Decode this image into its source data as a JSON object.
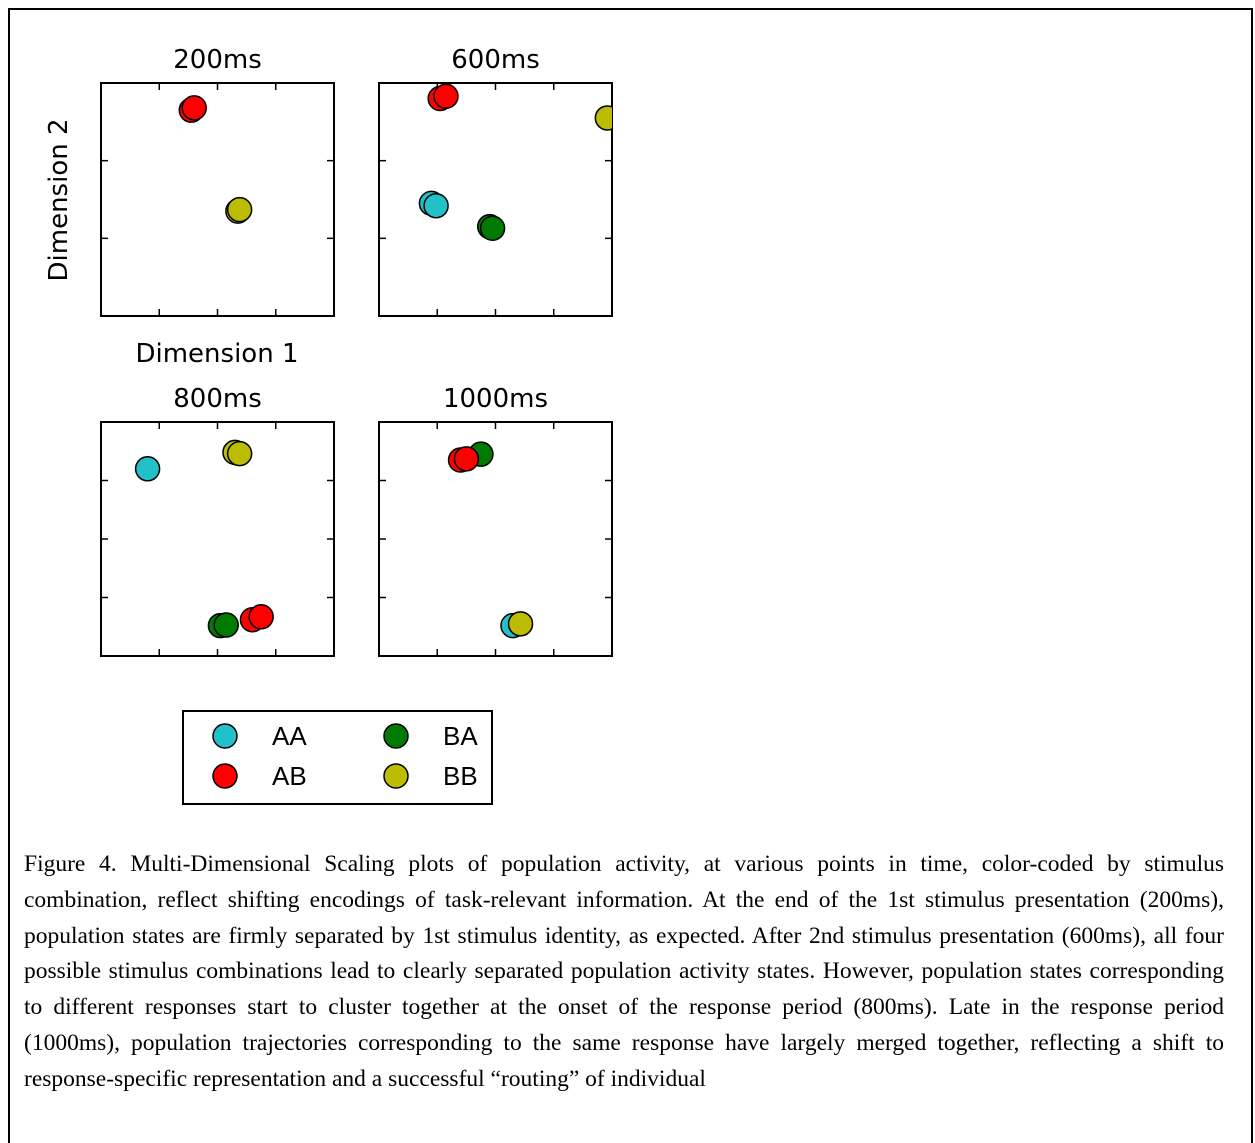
{
  "figure": {
    "ylabel": "Dimension 2",
    "xlabel": "Dimension 1",
    "caption": "Figure 4. Multi-Dimensional Scaling plots of population activity, at various points in time, color-coded by stimulus combination, reflect shifting encodings of task-relevant information. At the end of the 1st stimulus presentation (200ms), population states are firmly separated by 1st stimulus identity, as expected. After 2nd stimulus presentation (600ms), all four possible stimulus combinations lead to clearly separated population activity states. However, population states corresponding to different responses start to cluster together at the onset of the response period (800ms). Late in the response period (1000ms), population trajectories corresponding to the same response have largely merged together, reflecting a shift to response-specific representation and a successful “routing” of individual"
  },
  "colors": {
    "AA": "#22c0c8",
    "AB": "#ff0000",
    "BA": "#007a00",
    "BB": "#bcbc00"
  },
  "chart_data": [
    {
      "type": "scatter",
      "title": "200ms",
      "xlim": [
        0,
        4
      ],
      "ylim": [
        0,
        3
      ],
      "series": [
        {
          "name": "AA",
          "points": []
        },
        {
          "name": "BA",
          "points": []
        },
        {
          "name": "AB",
          "points": [
            [
              1.55,
              2.65
            ],
            [
              1.6,
              2.68
            ]
          ]
        },
        {
          "name": "BB",
          "points": [
            [
              2.35,
              1.35
            ],
            [
              2.38,
              1.37
            ]
          ]
        }
      ]
    },
    {
      "type": "scatter",
      "title": "600ms",
      "xlim": [
        0,
        4
      ],
      "ylim": [
        0,
        3
      ],
      "series": [
        {
          "name": "AA",
          "points": [
            [
              0.9,
              1.45
            ],
            [
              0.98,
              1.42
            ]
          ]
        },
        {
          "name": "BA",
          "points": [
            [
              1.9,
              1.15
            ],
            [
              1.95,
              1.13
            ]
          ]
        },
        {
          "name": "AB",
          "points": [
            [
              1.05,
              2.8
            ],
            [
              1.15,
              2.83
            ]
          ]
        },
        {
          "name": "BB",
          "points": [
            [
              3.92,
              2.55
            ]
          ]
        }
      ]
    },
    {
      "type": "scatter",
      "title": "800ms",
      "xlim": [
        0,
        4
      ],
      "ylim": [
        0,
        4
      ],
      "series": [
        {
          "name": "AA",
          "points": [
            [
              0.8,
              3.2
            ]
          ]
        },
        {
          "name": "BA",
          "points": [
            [
              2.05,
              0.52
            ],
            [
              2.15,
              0.53
            ]
          ]
        },
        {
          "name": "AB",
          "points": [
            [
              2.6,
              0.62
            ],
            [
              2.75,
              0.67
            ]
          ]
        },
        {
          "name": "BB",
          "points": [
            [
              2.3,
              3.48
            ],
            [
              2.38,
              3.46
            ]
          ]
        }
      ]
    },
    {
      "type": "scatter",
      "title": "1000ms",
      "xlim": [
        0,
        4
      ],
      "ylim": [
        0,
        4
      ],
      "series": [
        {
          "name": "AA",
          "points": [
            [
              2.3,
              0.52
            ]
          ]
        },
        {
          "name": "BA",
          "points": [
            [
              1.75,
              3.45
            ]
          ]
        },
        {
          "name": "AB",
          "points": [
            [
              1.4,
              3.35
            ],
            [
              1.5,
              3.37
            ]
          ]
        },
        {
          "name": "BB",
          "points": [
            [
              2.43,
              0.55
            ]
          ]
        }
      ]
    }
  ],
  "legend": {
    "placement": "bottom",
    "entries": [
      {
        "label": "AA",
        "key": "AA"
      },
      {
        "label": "BA",
        "key": "BA"
      },
      {
        "label": "AB",
        "key": "AB"
      },
      {
        "label": "BB",
        "key": "BB"
      }
    ]
  }
}
